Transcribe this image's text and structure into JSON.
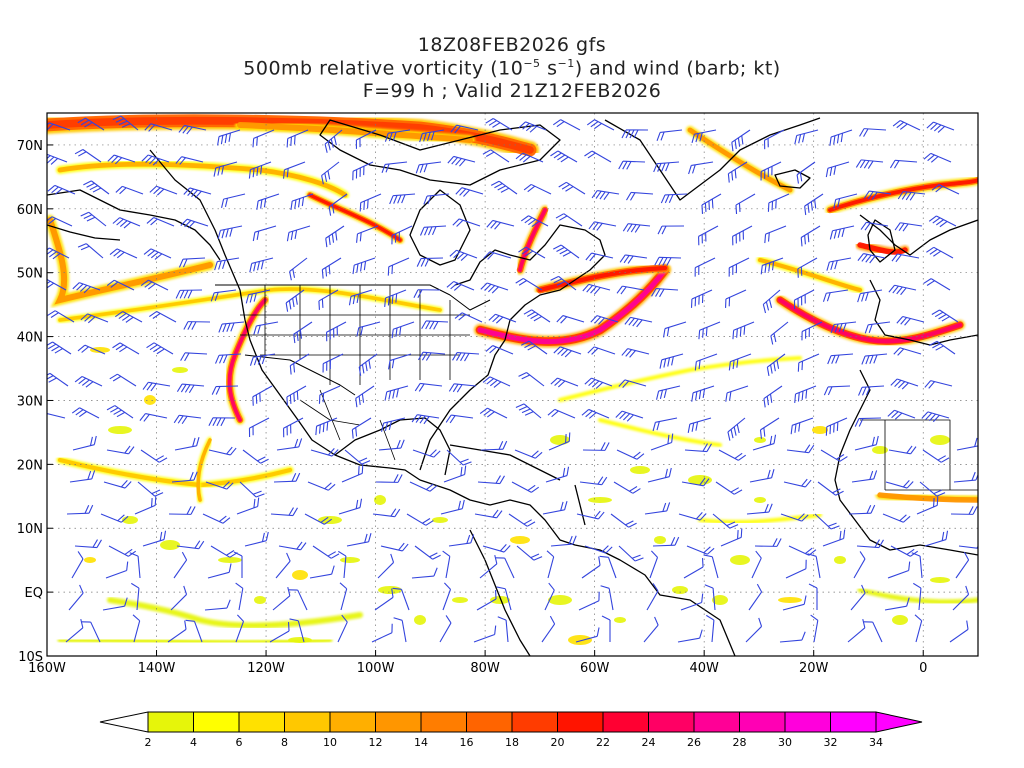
{
  "title": {
    "line1": "18Z08FEB2026 gfs",
    "line2_pre": "500mb relative vorticity (10",
    "line2_exp1": "−5",
    "line2_mid": " s",
    "line2_exp2": "−1",
    "line2_post": ") and wind (barb; kt)",
    "line3": "F=99 h ; Valid 21Z12FEB2026"
  },
  "map": {
    "lon_range": [
      -160,
      10
    ],
    "lat_range": [
      -10,
      75
    ],
    "lon_ticks": [
      {
        "value": -160,
        "label": "160W"
      },
      {
        "value": -140,
        "label": "140W"
      },
      {
        "value": -120,
        "label": "120W"
      },
      {
        "value": -100,
        "label": "100W"
      },
      {
        "value": -80,
        "label": "80W"
      },
      {
        "value": -60,
        "label": "60W"
      },
      {
        "value": -40,
        "label": "40W"
      },
      {
        "value": -20,
        "label": "20W"
      },
      {
        "value": 0,
        "label": "0"
      }
    ],
    "lat_ticks": [
      {
        "value": -10,
        "label": "10S"
      },
      {
        "value": 0,
        "label": "EQ"
      },
      {
        "value": 10,
        "label": "10N"
      },
      {
        "value": 20,
        "label": "20N"
      },
      {
        "value": 30,
        "label": "30N"
      },
      {
        "value": 40,
        "label": "40N"
      },
      {
        "value": 50,
        "label": "50N"
      },
      {
        "value": 60,
        "label": "60N"
      },
      {
        "value": 70,
        "label": "70N"
      }
    ],
    "barb_color": "#3344dd",
    "grid": true
  },
  "colorbar": {
    "levels": [
      "2",
      "4",
      "6",
      "8",
      "10",
      "12",
      "14",
      "16",
      "18",
      "20",
      "22",
      "24",
      "26",
      "28",
      "30",
      "32",
      "34"
    ],
    "colors": [
      "#e6f50a",
      "#ffff00",
      "#ffe100",
      "#ffc800",
      "#ffaf00",
      "#ff9600",
      "#ff7d00",
      "#ff6400",
      "#ff3c00",
      "#ff1400",
      "#ff0032",
      "#ff0064",
      "#ff0096",
      "#ff00b4",
      "#ff00dc",
      "#ff00ff"
    ]
  }
}
